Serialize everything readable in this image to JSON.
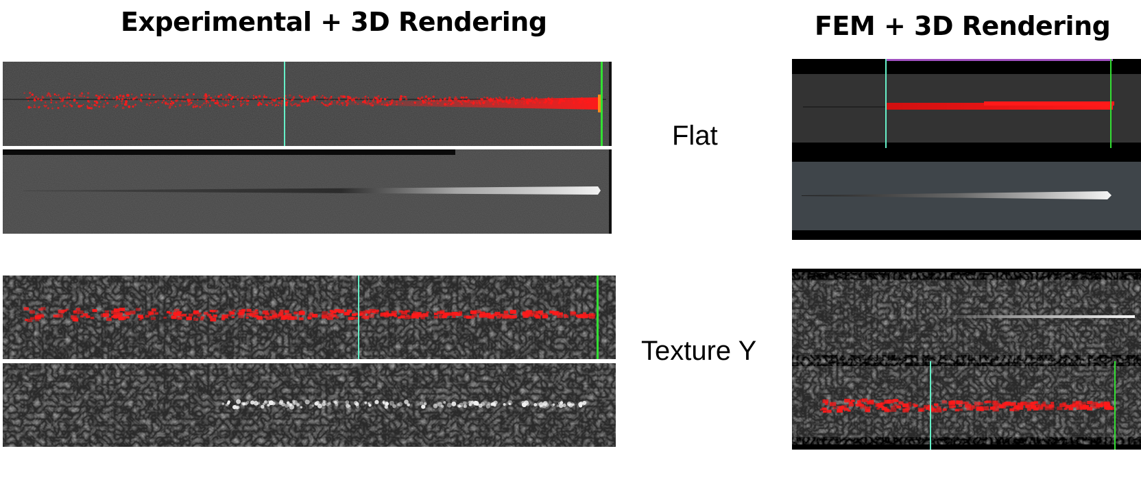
{
  "titles": {
    "left": "Experimental + 3D Rendering",
    "right": "FEM + 3D Rendering"
  },
  "row_labels": {
    "flat": "Flat",
    "texture": "Texture Y"
  },
  "colors": {
    "background": "#ffffff",
    "flat_surface": "#3a3a3a",
    "fem_surface": "#2d2d2d",
    "fem_surface_light": "#3f454a",
    "textured_surface": "#2e2e2e",
    "trace_red": "#ff1a1a",
    "marker_cyan": "#66f0c8",
    "marker_green": "#33e033",
    "frame_black": "#000000"
  },
  "panels": [
    {
      "id": "exp-flat-top",
      "kind": "flat-overlay"
    },
    {
      "id": "exp-flat-bottom",
      "kind": "flat-render"
    },
    {
      "id": "exp-texture-top",
      "kind": "texture-overlay"
    },
    {
      "id": "exp-texture-bottom",
      "kind": "texture-render"
    },
    {
      "id": "fem-flat",
      "kind": "fem-flat"
    },
    {
      "id": "fem-texture",
      "kind": "fem-texture"
    }
  ]
}
